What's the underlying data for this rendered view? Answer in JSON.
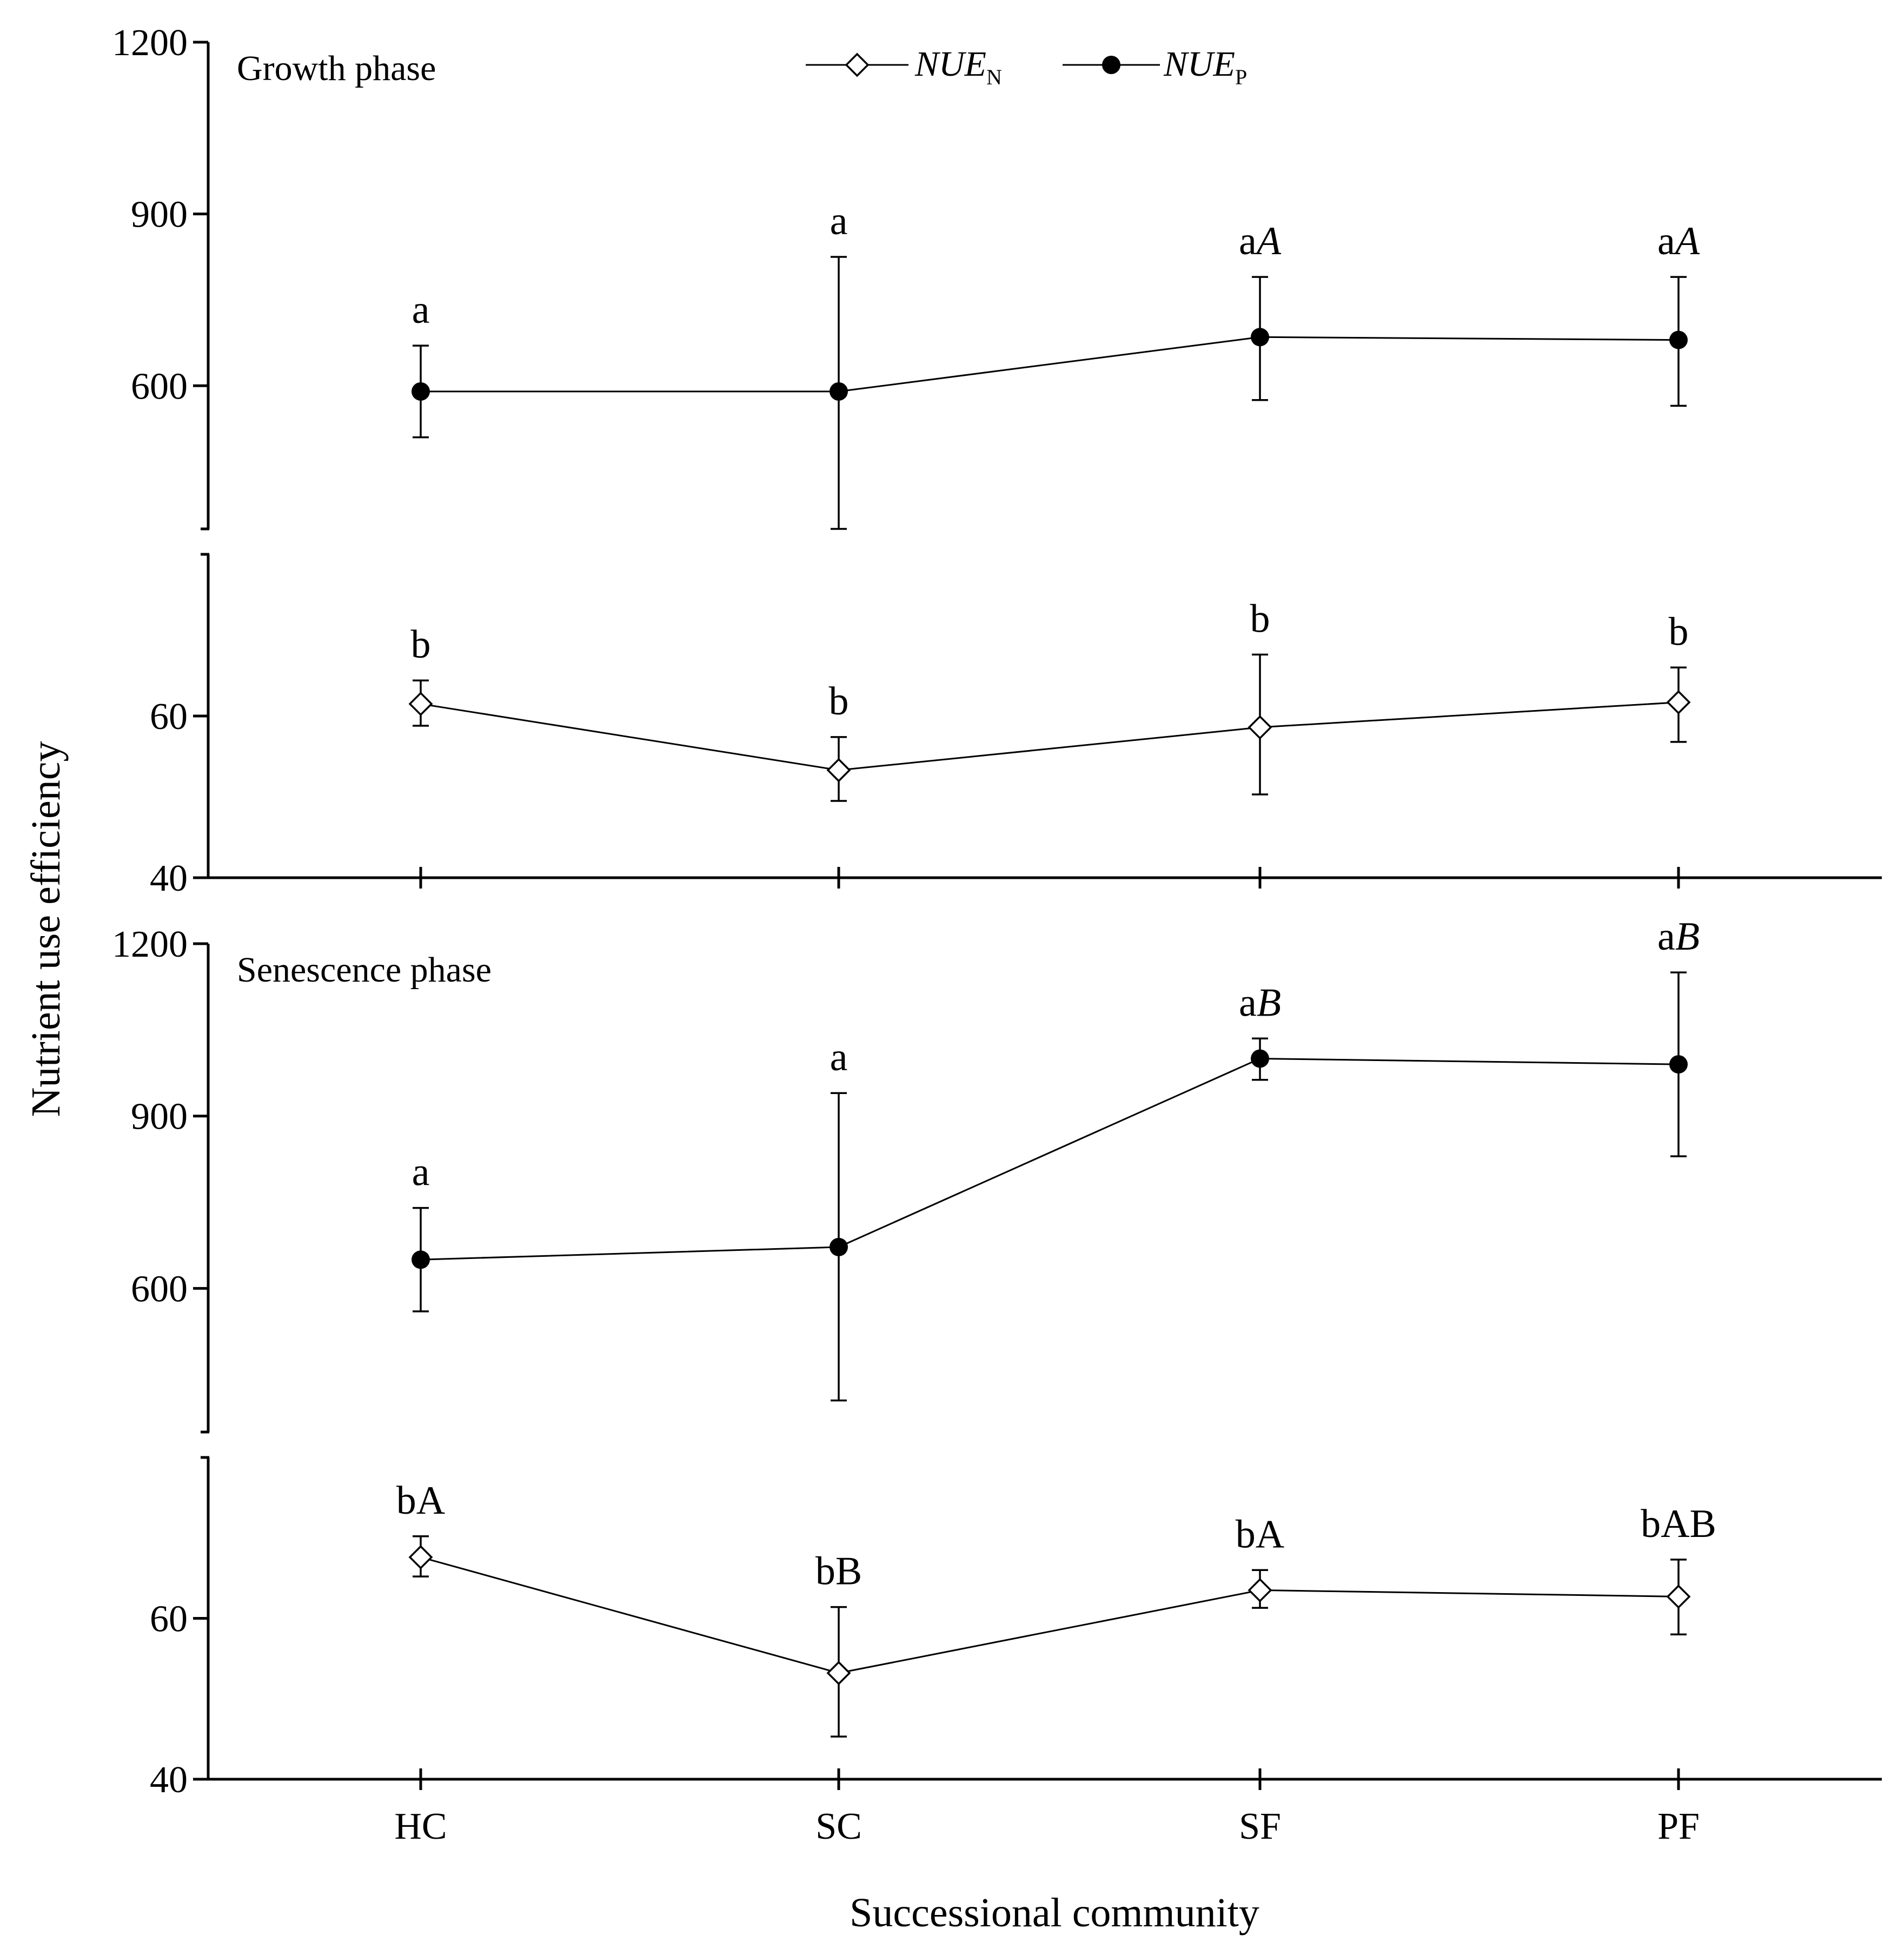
{
  "chart_data": {
    "type": "line",
    "xlabel": "Successional community",
    "ylabel": "Nutrient use efficiency",
    "categories": [
      "HC",
      "SC",
      "SF",
      "PF"
    ],
    "legend": [
      {
        "key": "NUE_N",
        "base": "NUE",
        "sub": "N",
        "marker": "open-diamond"
      },
      {
        "key": "NUE_P",
        "base": "NUE",
        "sub": "P",
        "marker": "filled-circle"
      }
    ],
    "legend_position": "top-center",
    "panels": [
      {
        "title": "Growth phase",
        "upper_axis": {
          "ylim": [
            350,
            1200
          ],
          "ticks": [
            600,
            900,
            1200
          ],
          "tick_labels": [
            "600",
            "900",
            "1200"
          ]
        },
        "lower_axis": {
          "ylim": [
            40,
            80
          ],
          "ticks": [
            40,
            60
          ],
          "tick_labels": [
            "40",
            "60"
          ]
        },
        "series": [
          {
            "name": "NUE_P",
            "axis": "upper",
            "values": [
              590,
              590,
              685,
              680
            ],
            "err_low": [
              510,
              350,
              575,
              565
            ],
            "err_high": [
              670,
              825,
              790,
              790
            ],
            "labels": [
              [
                "a",
                ""
              ],
              [
                "a",
                ""
              ],
              [
                "a",
                "A"
              ],
              [
                "a",
                "A"
              ]
            ]
          },
          {
            "name": "NUE_N",
            "axis": "lower",
            "values": [
              61.5,
              53.3,
              58.6,
              61.7
            ],
            "err_low": [
              58.8,
              49.5,
              50.3,
              56.8
            ],
            "err_high": [
              64.4,
              57.4,
              67.6,
              66.0
            ],
            "labels": [
              [
                "b",
                ""
              ],
              [
                "b",
                ""
              ],
              [
                "b",
                ""
              ],
              [
                "b",
                ""
              ]
            ]
          }
        ]
      },
      {
        "title": "Senescence phase",
        "upper_axis": {
          "ylim": [
            350,
            1200
          ],
          "ticks": [
            600,
            900,
            1200
          ],
          "tick_labels": [
            "600",
            "900",
            "1200"
          ]
        },
        "lower_axis": {
          "ylim": [
            40,
            80
          ],
          "ticks": [
            40,
            60
          ],
          "tick_labels": [
            "40",
            "60"
          ]
        },
        "series": [
          {
            "name": "NUE_P",
            "axis": "upper",
            "values": [
              650,
              672,
              1000,
              990
            ],
            "err_low": [
              560,
              405,
              963,
              830
            ],
            "err_high": [
              740,
              940,
              1035,
              1150
            ],
            "labels": [
              [
                "a",
                ""
              ],
              [
                "a",
                ""
              ],
              [
                "a",
                "B"
              ],
              [
                "a",
                "B"
              ]
            ]
          },
          {
            "name": "NUE_N",
            "axis": "lower",
            "values": [
              67.6,
              53.2,
              63.5,
              62.7
            ],
            "err_low": [
              65.2,
              45.3,
              61.3,
              58.0
            ],
            "err_high": [
              70.2,
              61.4,
              66.0,
              67.3
            ],
            "labels": [
              [
                "b",
                "A"
              ],
              [
                "b",
                "B"
              ],
              [
                "b",
                "A"
              ],
              [
                "b",
                "AB"
              ]
            ]
          }
        ]
      }
    ]
  }
}
